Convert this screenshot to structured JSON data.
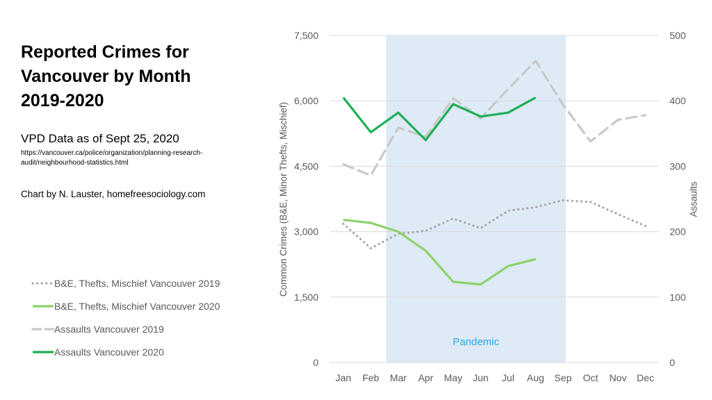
{
  "header": {
    "title_line1": "Reported Crimes for",
    "title_line2": "Vancouver by Month",
    "title_line3": "2019-2020",
    "subtitle": "VPD Data as of Sept 25, 2020",
    "source_url_line1": "https://vancouver.ca/police/organization/planning-research-",
    "source_url_line2": "audit/neighbourhood-statistics.html",
    "credit": "Chart by N. Lauster, homefreesociology.com"
  },
  "colors": {
    "property2019": "#A6A6A6",
    "property2020": "#8CD16A",
    "assault2019": "#C8C8C8",
    "assault2020": "#1DAE55",
    "pandemic_band": "#DEEAF6",
    "pandemic_text": "#2EA8DC",
    "grid": "#D9D9D9"
  },
  "chart_data": {
    "type": "line",
    "x": [
      "Jan",
      "Feb",
      "Mar",
      "Apr",
      "May",
      "Jun",
      "Jul",
      "Aug",
      "Sep",
      "Oct",
      "Nov",
      "Dec"
    ],
    "y_left": {
      "label": "Common Crimes (B&E, Minor Thefts, Mischief)",
      "range": [
        0,
        7500
      ],
      "ticks": [
        0,
        1500,
        3000,
        4500,
        6000,
        7500
      ],
      "tick_labels": [
        "0",
        "1,500",
        "3,000",
        "4,500",
        "6,000",
        "7,500"
      ]
    },
    "y_right": {
      "label": "Assaults",
      "range": [
        0,
        500
      ],
      "ticks": [
        0,
        100,
        200,
        300,
        400,
        500
      ],
      "tick_labels": [
        "0",
        "100",
        "200",
        "300",
        "400",
        "500"
      ]
    },
    "shaded_region": {
      "label": "Pandemic",
      "from": "Mar",
      "to": "Sep"
    },
    "series": [
      {
        "name": "B&E, Thefts, Mischief Vancouver 2019",
        "axis": "left",
        "style": "dotted",
        "color": "#A6A6A6",
        "values": [
          3180,
          2620,
          2950,
          3020,
          3300,
          3080,
          3480,
          3560,
          3720,
          3680,
          3400,
          3130
        ]
      },
      {
        "name": "B&E, Thefts, Mischief Vancouver 2020",
        "axis": "left",
        "style": "solid",
        "color": "#8CD16A",
        "values": [
          3270,
          3200,
          3000,
          2560,
          1850,
          1790,
          2210,
          2370,
          null,
          null,
          null,
          null
        ]
      },
      {
        "name": "Assaults Vancouver 2019",
        "axis": "right",
        "style": "dashed",
        "color": "#C8C8C8",
        "values": [
          303,
          286,
          359,
          345,
          404,
          373,
          418,
          461,
          394,
          338,
          371,
          378
        ]
      },
      {
        "name": "Assaults Vancouver 2020",
        "axis": "right",
        "style": "solid",
        "color": "#1DAE55",
        "values": [
          405,
          352,
          382,
          340,
          395,
          376,
          382,
          405,
          null,
          null,
          null,
          null
        ]
      }
    ]
  }
}
